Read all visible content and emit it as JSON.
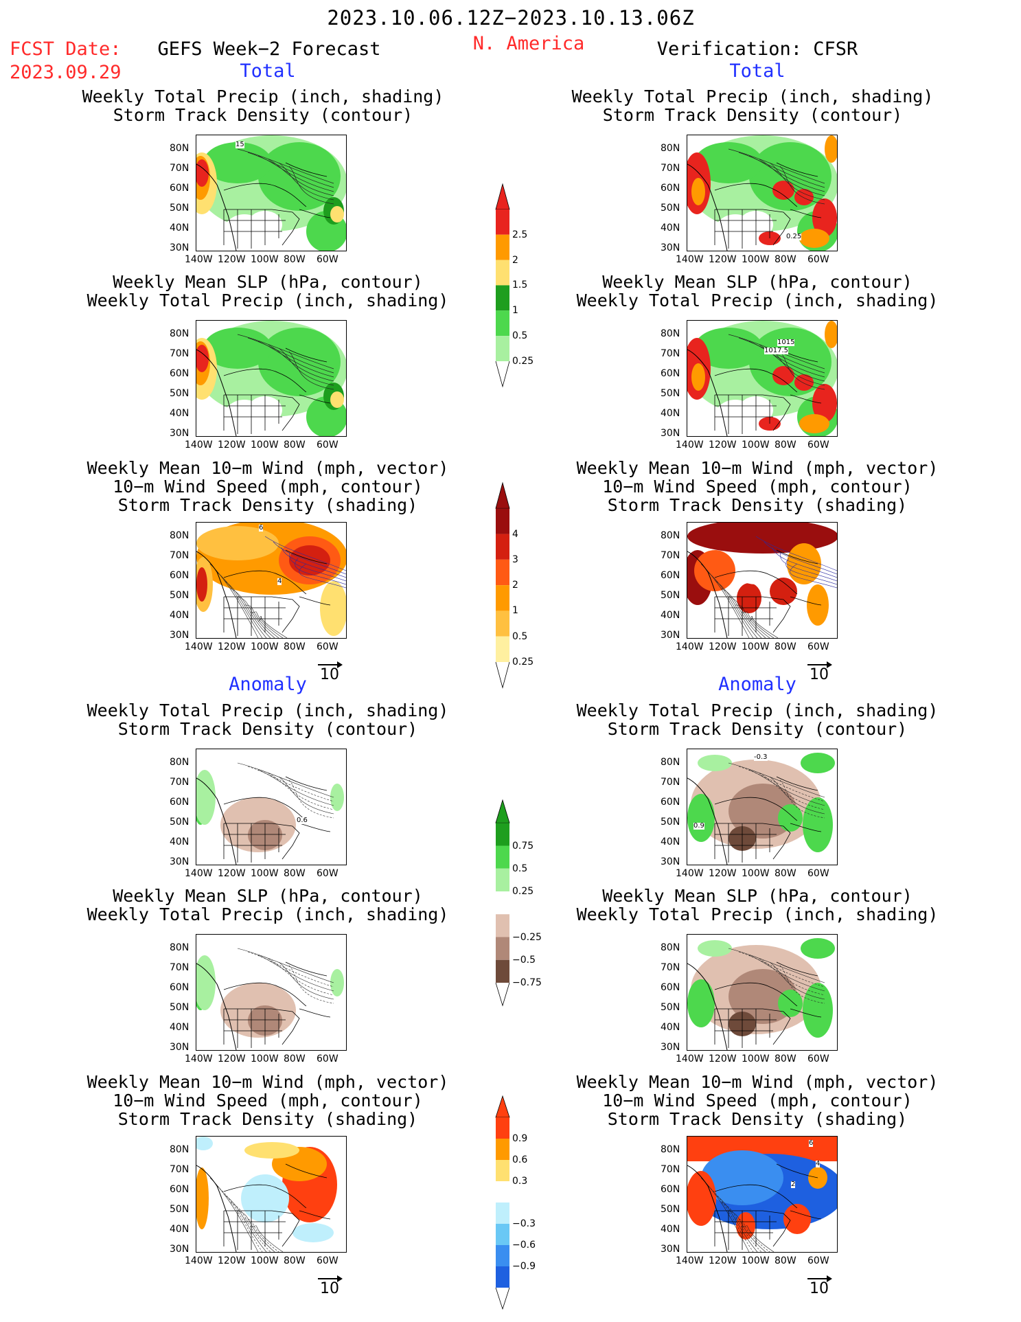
{
  "header": {
    "period": "2023.10.06.12Z−2023.10.13.06Z",
    "fcst_label": "FCST Date:",
    "fcst_date": "2023.09.29",
    "model": "GEFS Week−2 Forecast",
    "region": "N. America",
    "verification": "Verification: CFSR"
  },
  "sections": {
    "total": "Total",
    "anomaly": "Anomaly"
  },
  "titles": {
    "precip_track": [
      "Weekly Total Precip (inch, shading)",
      "Storm Track Density (contour)"
    ],
    "slp_precip": [
      "Weekly Mean SLP (hPa, contour)",
      "Weekly Total Precip (inch, shading)"
    ],
    "wind_track": [
      "Weekly Mean 10−m Wind (mph, vector)",
      "10−m Wind Speed (mph, contour)",
      "Storm Track Density (shading)"
    ]
  },
  "axes": {
    "lat": [
      "80N",
      "70N",
      "60N",
      "50N",
      "40N",
      "30N"
    ],
    "lon": [
      "140W",
      "120W",
      "100W",
      "80W",
      "60W"
    ]
  },
  "vector_ref": "10",
  "colorbars": [
    {
      "labels": [
        "2.5",
        "2",
        "1.5",
        "1",
        "0.5",
        "0.25"
      ],
      "colors": [
        "#e8241e",
        "#ff9a00",
        "#ffe070",
        "#1e9e1e",
        "#4dd84d",
        "#a8f0a0"
      ]
    },
    {
      "labels": [
        "4",
        "3",
        "2",
        "1",
        "0.5",
        "0.25"
      ],
      "colors": [
        "#9a0e0e",
        "#d42010",
        "#ff5a14",
        "#ff9a00",
        "#ffc040",
        "#fff0a0"
      ]
    },
    {
      "labels": [
        "0.75",
        "0.5",
        "0.25",
        "−0.25",
        "−0.5",
        "−0.75"
      ],
      "colors": [
        "#1e9e1e",
        "#4dd84d",
        "#a8f0a0",
        "#ffffff",
        "#e0c0b0",
        "#b08878",
        "#6e4a3a"
      ]
    },
    {
      "labels": [
        "0.9",
        "0.6",
        "0.3",
        "−0.3",
        "−0.6",
        "−0.9"
      ],
      "colors": [
        "#ff4010",
        "#ff9a00",
        "#ffe070",
        "#ffffff",
        "#bfeffc",
        "#6ac8f5",
        "#3a8ef0",
        "#1e60e0"
      ]
    }
  ],
  "annotations": {
    "ltop_contour": "15",
    "rtop_contour": "0.25",
    "rslp_contours": [
      "1015",
      "1017.5"
    ],
    "lanom_contour": "0.6",
    "ranom_contours": [
      "-0.3",
      "0.9"
    ],
    "wind_labels": [
      "6",
      "4",
      "2"
    ]
  },
  "colors": {
    "green_light": "#a8f0a0",
    "green_mid": "#4dd84d",
    "green_dark": "#1e9e1e",
    "yellow": "#ffe070",
    "orange": "#ff9a00",
    "red": "#e8241e",
    "darkred": "#9a0e0e",
    "brown_light": "#e0c0b0",
    "brown_mid": "#b08878",
    "brown_dark": "#6e4a3a",
    "blue_light": "#bfeffc",
    "blue_mid": "#6ac8f5",
    "blue_dark": "#1e60e0"
  }
}
